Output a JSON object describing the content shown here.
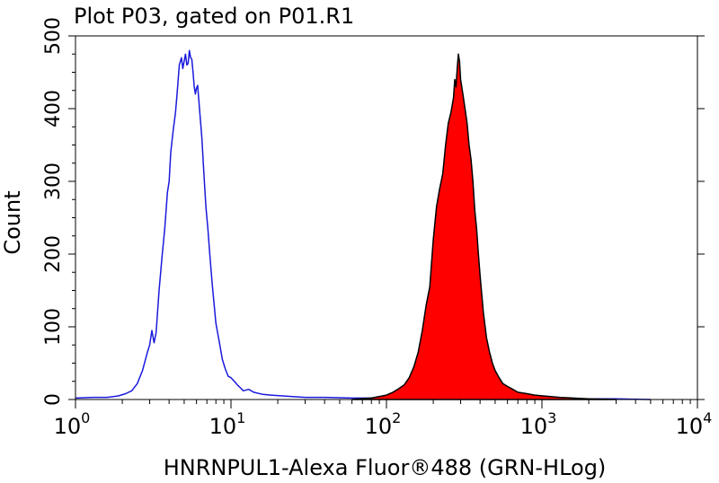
{
  "chart_data": {
    "type": "area",
    "title": "Plot P03, gated on P01.R1",
    "xlabel": "HNRNPUL1-Alexa Fluor®488 (GRN-HLog)",
    "ylabel": "Count",
    "xscale": "log",
    "xlim": [
      1,
      10000
    ],
    "ylim": [
      0,
      500
    ],
    "x_ticks": [
      {
        "value": 1,
        "base": "10",
        "exp": "0"
      },
      {
        "value": 10,
        "base": "10",
        "exp": "1"
      },
      {
        "value": 100,
        "base": "10",
        "exp": "2"
      },
      {
        "value": 1000,
        "base": "10",
        "exp": "3"
      },
      {
        "value": 10000,
        "base": "10",
        "exp": "4"
      }
    ],
    "y_ticks": [
      "0",
      "100",
      "200",
      "300",
      "400",
      "500"
    ],
    "y_tick_values": [
      0,
      100,
      200,
      300,
      400,
      500
    ],
    "grid": false,
    "series": [
      {
        "style": "outline",
        "color": "#1a1adc",
        "x": [
          1.0,
          1.3,
          1.6,
          1.9,
          2.1,
          2.3,
          2.5,
          2.7,
          2.9,
          3.0,
          3.1,
          3.2,
          3.3,
          3.45,
          3.6,
          3.75,
          3.9,
          4.0,
          4.1,
          4.25,
          4.4,
          4.5,
          4.65,
          4.8,
          4.9,
          5.0,
          5.1,
          5.2,
          5.3,
          5.4,
          5.5,
          5.6,
          5.7,
          5.8,
          5.9,
          6.0,
          6.1,
          6.3,
          6.5,
          6.7,
          6.9,
          7.1,
          7.3,
          7.6,
          8.0,
          8.4,
          8.8,
          9.2,
          9.6,
          10.0,
          10.5,
          11.0,
          11.5,
          12.0,
          13.0,
          14.0,
          16.0,
          18.0,
          21.0,
          25.0,
          30.0,
          40.0,
          60.0,
          100.0,
          200.0,
          500.0,
          1000.0,
          3000.0,
          5000.0
        ],
        "values": [
          2,
          3,
          3,
          5,
          8,
          12,
          22,
          40,
          65,
          75,
          95,
          78,
          92,
          150,
          195,
          235,
          285,
          300,
          340,
          370,
          395,
          420,
          460,
          470,
          455,
          465,
          475,
          460,
          462,
          480,
          470,
          468,
          450,
          430,
          420,
          428,
          432,
          395,
          360,
          310,
          265,
          235,
          200,
          155,
          105,
          80,
          55,
          42,
          32,
          30,
          25,
          20,
          16,
          12,
          14,
          10,
          7,
          6,
          5,
          4,
          3,
          3,
          2,
          2,
          1,
          1,
          1,
          1,
          0
        ]
      },
      {
        "style": "filled",
        "color": "#ff0000",
        "x": [
          60,
          80,
          100,
          110,
          120,
          130,
          140,
          150,
          160,
          170,
          180,
          190,
          200,
          210,
          220,
          230,
          240,
          250,
          260,
          270,
          275,
          280,
          285,
          290,
          295,
          300,
          310,
          320,
          330,
          340,
          350,
          360,
          370,
          380,
          390,
          400,
          420,
          440,
          460,
          480,
          500,
          530,
          560,
          600,
          650,
          700,
          800,
          900,
          1000,
          1300,
          2000,
          3000
        ],
        "values": [
          0,
          2,
          6,
          10,
          15,
          20,
          30,
          45,
          65,
          95,
          130,
          155,
          220,
          265,
          290,
          310,
          350,
          380,
          395,
          415,
          440,
          430,
          455,
          475,
          465,
          440,
          420,
          400,
          380,
          350,
          330,
          300,
          260,
          235,
          200,
          170,
          120,
          85,
          65,
          50,
          40,
          30,
          22,
          18,
          14,
          10,
          8,
          6,
          5,
          3,
          1,
          0
        ]
      }
    ]
  }
}
